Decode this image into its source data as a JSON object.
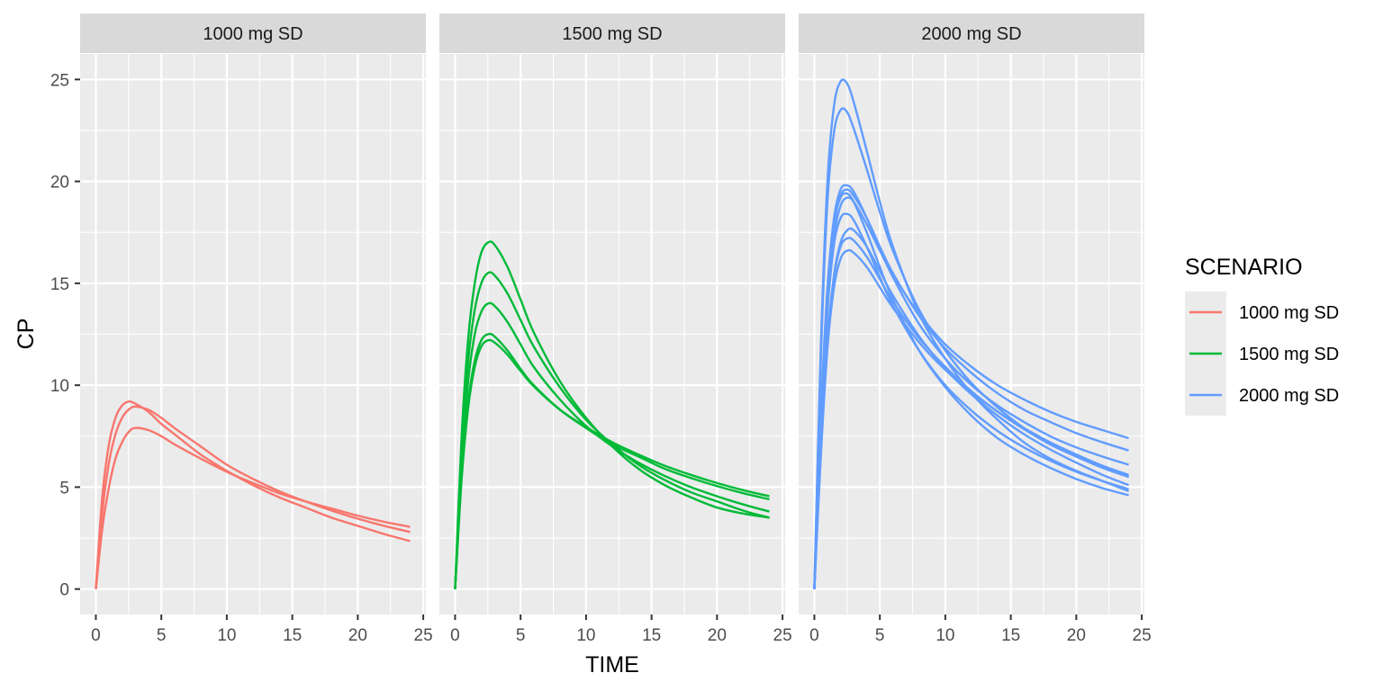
{
  "chart_data": {
    "type": "line",
    "facet_variable": "SCENARIO",
    "xlabel": "TIME",
    "ylabel": "CP",
    "xlim": [
      -1.2,
      25.2
    ],
    "ylim": [
      -1.25,
      26.25
    ],
    "x_ticks": [
      0,
      5,
      10,
      15,
      20,
      25
    ],
    "y_ticks": [
      0,
      5,
      10,
      15,
      20,
      25
    ],
    "x_tick_labels": [
      "0",
      "5",
      "10",
      "15",
      "20",
      "25"
    ],
    "y_tick_labels": [
      "0",
      "5",
      "10",
      "15",
      "20",
      "25"
    ],
    "grid": true,
    "legend": {
      "title": "SCENARIO",
      "position": "right",
      "entries": [
        {
          "label": "1000 mg SD",
          "color": "#F8766D"
        },
        {
          "label": "1500 mg SD",
          "color": "#00BA38"
        },
        {
          "label": "2000 mg SD",
          "color": "#619CFF"
        }
      ]
    },
    "panels": [
      {
        "title": "1000 mg SD",
        "color": "#F8766D",
        "subjects": [
          {
            "time": [
              0,
              0.5,
              1,
              1.5,
              2,
              2.5,
              3,
              4,
              5,
              6,
              8,
              10,
              12,
              14,
              16,
              18,
              20,
              22,
              24
            ],
            "cp": [
              0,
              4.6,
              7.1,
              8.4,
              9.0,
              9.2,
              9.1,
              8.7,
              8.1,
              7.6,
              6.6,
              5.8,
              5.1,
              4.5,
              4.0,
              3.5,
              3.1,
              2.7,
              2.35
            ]
          },
          {
            "time": [
              0,
              0.5,
              1,
              1.5,
              2,
              2.5,
              3,
              4,
              5,
              6,
              8,
              10,
              12,
              14,
              16,
              18,
              20,
              22,
              24
            ],
            "cp": [
              0,
              3.8,
              6.2,
              7.6,
              8.4,
              8.8,
              8.95,
              8.8,
              8.4,
              7.9,
              7.0,
              6.1,
              5.4,
              4.8,
              4.3,
              3.85,
              3.45,
              3.1,
              2.8
            ]
          },
          {
            "time": [
              0,
              0.5,
              1,
              1.5,
              2,
              2.5,
              3,
              4,
              5,
              6,
              8,
              10,
              12,
              14,
              16,
              18,
              20,
              22,
              24
            ],
            "cp": [
              0,
              3.0,
              5.0,
              6.4,
              7.2,
              7.7,
              7.9,
              7.8,
              7.5,
              7.1,
              6.4,
              5.75,
              5.2,
              4.7,
              4.3,
              3.95,
              3.6,
              3.3,
              3.05
            ]
          }
        ]
      },
      {
        "title": "1500 mg SD",
        "color": "#00BA38",
        "subjects": [
          {
            "time": [
              0,
              0.5,
              1,
              1.5,
              2,
              2.5,
              3,
              4,
              5,
              6,
              8,
              10,
              12,
              14,
              16,
              18,
              20,
              22,
              24
            ],
            "cp": [
              0,
              7.5,
              12.3,
              15.0,
              16.5,
              17.0,
              16.9,
              15.8,
              14.2,
              12.6,
              10.2,
              8.4,
              7.0,
              5.9,
              5.1,
              4.5,
              4.0,
              3.7,
              3.5
            ]
          },
          {
            "time": [
              0,
              0.5,
              1,
              1.5,
              2,
              2.5,
              3,
              4,
              5,
              6,
              8,
              10,
              12,
              14,
              16,
              18,
              20,
              22,
              24
            ],
            "cp": [
              0,
              6.8,
              11.2,
              13.7,
              15.0,
              15.5,
              15.4,
              14.5,
              13.2,
              11.9,
              9.9,
              8.3,
              7.1,
              6.1,
              5.35,
              4.75,
              4.3,
              3.85,
              3.5
            ]
          },
          {
            "time": [
              0,
              0.5,
              1,
              1.5,
              2,
              2.5,
              3,
              4,
              5,
              6,
              8,
              10,
              12,
              14,
              16,
              18,
              20,
              22,
              24
            ],
            "cp": [
              0,
              6.2,
              10.2,
              12.5,
              13.6,
              14.0,
              13.9,
              13.1,
              12.0,
              10.9,
              9.3,
              8.0,
              7.0,
              6.2,
              5.55,
              5.0,
              4.55,
              4.15,
              3.8
            ]
          },
          {
            "time": [
              0,
              0.5,
              1,
              1.5,
              2,
              2.5,
              3,
              4,
              5,
              6,
              8,
              10,
              12,
              14,
              16,
              18,
              20,
              22,
              24
            ],
            "cp": [
              0,
              5.6,
              9.2,
              11.2,
              12.2,
              12.5,
              12.4,
              11.7,
              10.8,
              10.0,
              8.8,
              7.9,
              7.1,
              6.5,
              5.9,
              5.45,
              5.05,
              4.7,
              4.4
            ]
          },
          {
            "time": [
              0,
              0.5,
              1,
              1.5,
              2,
              2.5,
              3,
              4,
              5,
              6,
              8,
              10,
              12,
              14,
              16,
              18,
              20,
              22,
              24
            ],
            "cp": [
              0,
              5.4,
              8.9,
              10.9,
              11.9,
              12.2,
              12.1,
              11.5,
              10.7,
              9.95,
              8.8,
              7.95,
              7.2,
              6.6,
              6.05,
              5.6,
              5.2,
              4.85,
              4.55
            ]
          }
        ]
      },
      {
        "title": "2000 mg SD",
        "color": "#619CFF",
        "subjects": [
          {
            "time": [
              0,
              0.5,
              1,
              1.5,
              2,
              2.5,
              3,
              4,
              5,
              6,
              8,
              10,
              12,
              14,
              16,
              18,
              20,
              22,
              24
            ],
            "cp": [
              0,
              12.0,
              20.0,
              23.7,
              24.9,
              24.8,
              23.9,
              21.5,
              19.0,
              16.8,
              13.5,
              11.3,
              9.6,
              8.3,
              7.2,
              6.4,
              5.8,
              5.3,
              4.8
            ]
          },
          {
            "time": [
              0,
              0.5,
              1,
              1.5,
              2,
              2.5,
              3,
              4,
              5,
              6,
              8,
              10,
              12,
              14,
              16,
              18,
              20,
              22,
              24
            ],
            "cp": [
              0,
              11.4,
              19.0,
              22.4,
              23.5,
              23.4,
              22.6,
              20.6,
              18.5,
              16.6,
              13.7,
              11.7,
              10.1,
              8.9,
              7.9,
              7.1,
              6.5,
              5.95,
              5.5
            ]
          },
          {
            "time": [
              0,
              0.5,
              1,
              1.5,
              2,
              2.5,
              3,
              4,
              5,
              6,
              8,
              10,
              12,
              14,
              16,
              18,
              20,
              22,
              24
            ],
            "cp": [
              0,
              8.6,
              14.8,
              18.2,
              19.6,
              19.8,
              19.5,
              18.2,
              16.7,
              15.3,
              13.0,
              11.3,
              10.0,
              9.0,
              8.2,
              7.5,
              6.95,
              6.5,
              6.1
            ]
          },
          {
            "time": [
              0,
              0.5,
              1,
              1.5,
              2,
              2.5,
              3,
              4,
              5,
              6,
              8,
              10,
              12,
              14,
              16,
              18,
              20,
              22,
              24
            ],
            "cp": [
              0,
              8.2,
              14.3,
              17.8,
              19.3,
              19.6,
              19.3,
              18.2,
              16.8,
              15.5,
              13.4,
              11.8,
              10.6,
              9.6,
              8.8,
              8.2,
              7.65,
              7.2,
              6.8
            ]
          },
          {
            "time": [
              0,
              0.5,
              1,
              1.5,
              2,
              2.5,
              3,
              4,
              5,
              6,
              8,
              10,
              12,
              14,
              16,
              18,
              20,
              22,
              24
            ],
            "cp": [
              0,
              8.0,
              13.9,
              17.3,
              18.8,
              19.2,
              19.0,
              17.9,
              16.6,
              15.4,
              13.5,
              12.0,
              10.9,
              10.0,
              9.3,
              8.7,
              8.2,
              7.8,
              7.4
            ]
          },
          {
            "time": [
              0,
              0.5,
              1,
              1.5,
              2,
              2.5,
              3,
              4,
              5,
              6,
              8,
              10,
              12,
              14,
              16,
              18,
              20,
              22,
              24
            ],
            "cp": [
              0,
              8.4,
              14.5,
              17.9,
              19.2,
              19.4,
              19.0,
              17.5,
              15.8,
              14.2,
              11.7,
              9.9,
              8.5,
              7.4,
              6.6,
              5.95,
              5.4,
              4.95,
              4.6
            ]
          },
          {
            "time": [
              0,
              0.5,
              1,
              1.5,
              2,
              2.5,
              3,
              4,
              5,
              6,
              8,
              10,
              12,
              14,
              16,
              18,
              20,
              22,
              24
            ],
            "cp": [
              0,
              7.8,
              13.6,
              16.9,
              18.2,
              18.4,
              18.1,
              16.8,
              15.3,
              13.9,
              11.7,
              10.0,
              8.75,
              7.75,
              6.95,
              6.3,
              5.75,
              5.3,
              4.9
            ]
          },
          {
            "time": [
              0,
              0.5,
              1,
              1.5,
              2,
              2.5,
              3,
              4,
              5,
              6,
              8,
              10,
              12,
              14,
              16,
              18,
              20,
              22,
              24
            ],
            "cp": [
              0,
              6.8,
              12.0,
              15.4,
              17.0,
              17.6,
              17.6,
              16.8,
              15.6,
              14.4,
              12.4,
              10.8,
              9.55,
              8.5,
              7.6,
              6.85,
              6.2,
              5.6,
              5.1
            ]
          },
          {
            "time": [
              0,
              0.5,
              1,
              1.5,
              2,
              2.5,
              3,
              4,
              5,
              6,
              8,
              10,
              12,
              14,
              16,
              18,
              20,
              22,
              24
            ],
            "cp": [
              0,
              7.0,
              12.3,
              15.3,
              16.8,
              17.2,
              17.1,
              16.3,
              15.2,
              14.1,
              12.3,
              10.9,
              9.7,
              8.7,
              7.85,
              7.1,
              6.5,
              5.95,
              5.5
            ]
          },
          {
            "time": [
              0,
              0.5,
              1,
              1.5,
              2,
              2.5,
              3,
              4,
              5,
              6,
              8,
              10,
              12,
              14,
              16,
              18,
              20,
              22,
              24
            ],
            "cp": [
              0,
              6.6,
              11.8,
              14.8,
              16.2,
              16.6,
              16.5,
              15.8,
              14.8,
              13.8,
              12.1,
              10.75,
              9.65,
              8.7,
              7.9,
              7.2,
              6.6,
              6.05,
              5.6
            ]
          }
        ]
      }
    ]
  }
}
